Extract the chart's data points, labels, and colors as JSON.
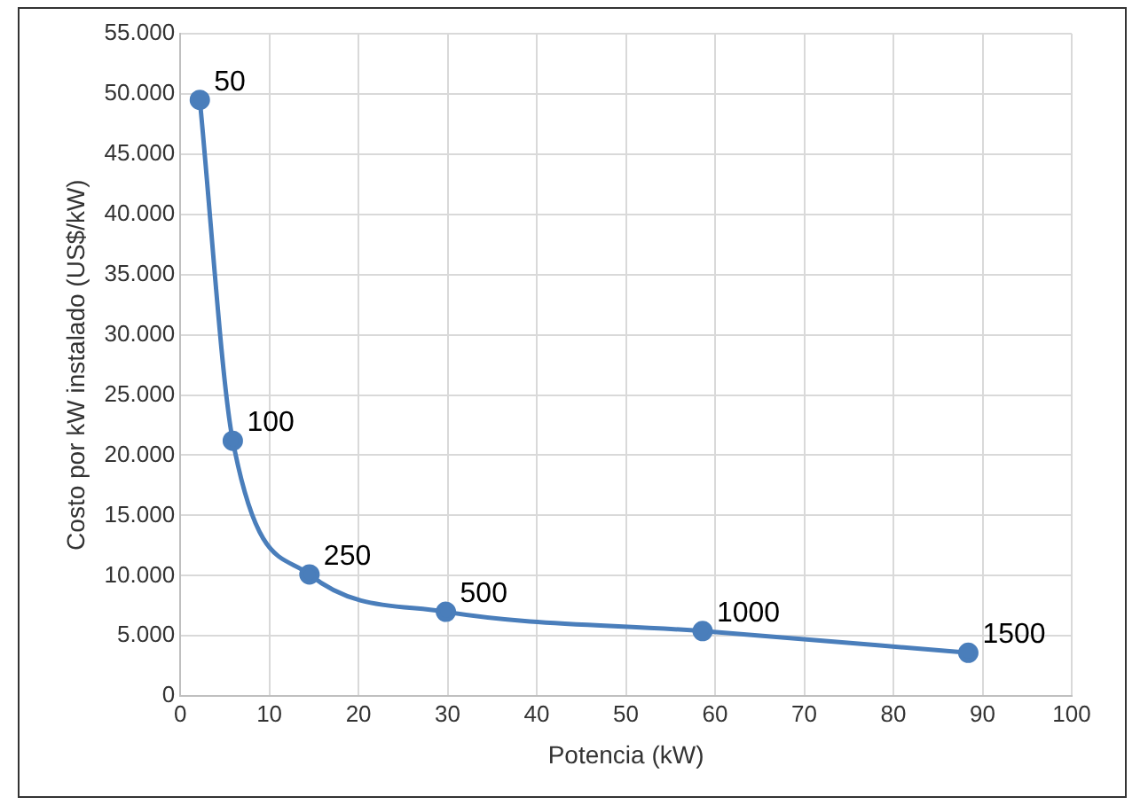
{
  "chart_data": {
    "type": "line",
    "xlabel": "Potencia (kW)",
    "ylabel": "Costo por kW instalado (US$/kW)",
    "x": [
      2.2,
      5.9,
      14.5,
      29.8,
      58.6,
      88.4
    ],
    "series": [
      {
        "color": "#4a7ebb",
        "values": [
          49500,
          21200,
          10100,
          7000,
          5400,
          3600
        ]
      }
    ],
    "xlim": [
      0,
      100
    ],
    "xticks": [
      0,
      10,
      20,
      30,
      40,
      50,
      60,
      70,
      80,
      90,
      100
    ],
    "ylim": [
      0,
      55000
    ],
    "yticks": [
      0,
      {
        "value": 5000,
        "label": "5.000"
      },
      {
        "value": 10000,
        "label": "10.000"
      },
      {
        "value": 15000,
        "label": "15.000"
      },
      {
        "value": 20000,
        "label": "20.000"
      },
      {
        "value": 25000,
        "label": "25.000"
      },
      {
        "value": 30000,
        "label": "30.000"
      },
      {
        "value": 35000,
        "label": "35.000"
      },
      {
        "value": 40000,
        "label": "40.000"
      },
      {
        "value": 45000,
        "label": "45.000"
      },
      {
        "value": 50000,
        "label": "50.000"
      },
      {
        "value": 55000,
        "label": "55.000"
      }
    ],
    "grid": true,
    "legend": false,
    "marker": "circle",
    "line_style": "solid",
    "annotations": [
      {
        "text": "50",
        "x": 2.2,
        "y": 49500
      },
      {
        "text": "100",
        "x": 5.9,
        "y": 21200
      },
      {
        "text": "250",
        "x": 14.5,
        "y": 10100
      },
      {
        "text": "500",
        "x": 29.8,
        "y": 7000
      },
      {
        "text": "1000",
        "x": 58.6,
        "y": 5400
      },
      {
        "text": "1500",
        "x": 88.4,
        "y": 3600
      }
    ]
  }
}
